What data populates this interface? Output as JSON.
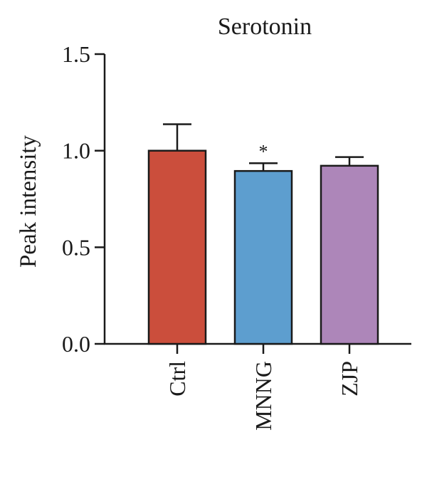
{
  "chart_data": {
    "type": "bar",
    "title": "Serotonin",
    "xlabel": "",
    "ylabel": "Peak intensity",
    "categories": [
      "Ctrl",
      "MNNG",
      "ZJP"
    ],
    "values": [
      1.0,
      0.895,
      0.922
    ],
    "errors": [
      0.137,
      0.04,
      0.045
    ],
    "significance": [
      "",
      "*",
      ""
    ],
    "colors": [
      "#cb4e3c",
      "#5d9ecf",
      "#ad86b9"
    ],
    "edge_color": "#1a1a1a",
    "ylim": [
      0,
      1.5
    ],
    "yticks": [
      0.0,
      0.5,
      1.0,
      1.5
    ],
    "ytick_labels": [
      "0.0",
      "0.5",
      "1.0",
      "1.5"
    ],
    "grid": false,
    "legend": "none"
  }
}
